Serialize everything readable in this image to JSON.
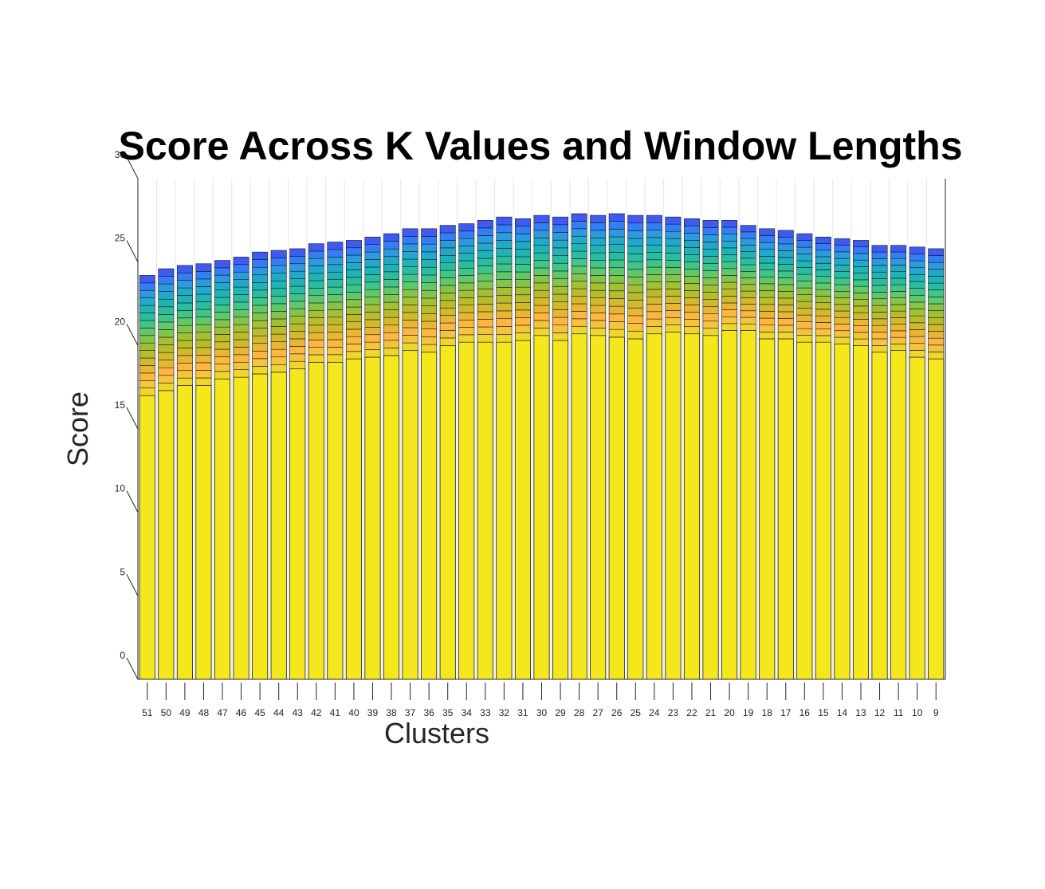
{
  "chart_data": {
    "type": "bar",
    "stacked": true,
    "title": "Score Across K Values and Window Lengths",
    "xlabel": "Clusters",
    "ylabel": "Score",
    "ylim": [
      0,
      30
    ],
    "yticks": [
      0,
      5,
      10,
      15,
      20,
      25,
      30
    ],
    "grid": "x",
    "categories": [
      "51",
      "50",
      "49",
      "48",
      "47",
      "46",
      "45",
      "44",
      "43",
      "42",
      "41",
      "40",
      "39",
      "38",
      "37",
      "36",
      "35",
      "34",
      "33",
      "32",
      "31",
      "30",
      "29",
      "28",
      "27",
      "26",
      "25",
      "24",
      "23",
      "22",
      "21",
      "20",
      "19",
      "18",
      "17",
      "16",
      "15",
      "14",
      "13",
      "12",
      "11",
      "10",
      "9"
    ],
    "base_values": [
      17.0,
      17.3,
      17.6,
      17.6,
      18.0,
      18.1,
      18.3,
      18.4,
      18.6,
      19.0,
      19.0,
      19.2,
      19.3,
      19.4,
      19.7,
      19.6,
      20.0,
      20.2,
      20.2,
      20.2,
      20.3,
      20.6,
      20.3,
      20.7,
      20.6,
      20.5,
      20.4,
      20.7,
      20.8,
      20.7,
      20.6,
      20.9,
      20.9,
      20.4,
      20.4,
      20.2,
      20.2,
      20.1,
      20.0,
      19.6,
      19.7,
      19.3,
      19.2
    ],
    "totals": [
      24.2,
      24.6,
      24.8,
      24.9,
      25.1,
      25.3,
      25.6,
      25.7,
      25.8,
      26.1,
      26.2,
      26.3,
      26.5,
      26.7,
      27.0,
      27.0,
      27.2,
      27.3,
      27.5,
      27.7,
      27.6,
      27.8,
      27.7,
      27.9,
      27.8,
      27.9,
      27.8,
      27.8,
      27.7,
      27.6,
      27.5,
      27.5,
      27.2,
      27.0,
      26.9,
      26.7,
      26.5,
      26.4,
      26.3,
      26.0,
      26.0,
      25.9,
      25.8
    ],
    "segment_colors": [
      "#f4e71c",
      "#efd62c",
      "#f6c33c",
      "#fdb741",
      "#e9b631",
      "#d2b82b",
      "#b9bc2a",
      "#a2c033",
      "#84c44b",
      "#5fc868",
      "#3ec588",
      "#28bda0",
      "#1eb4b6",
      "#20a9cb",
      "#2b9ade",
      "#347df8",
      "#3e5af2"
    ]
  }
}
